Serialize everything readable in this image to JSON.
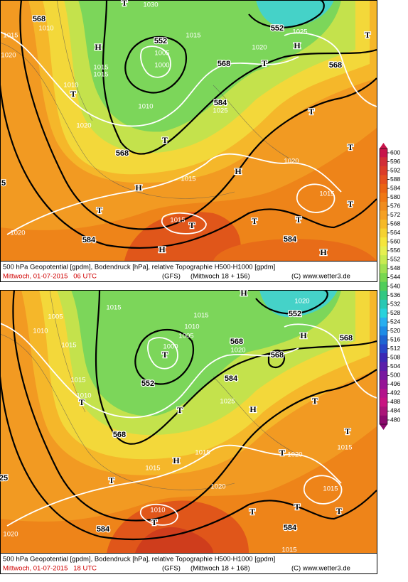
{
  "panels": [
    {
      "labels": [
        "568",
        "1010",
        "1015",
        "1020",
        "T",
        "1030",
        "H",
        "552",
        "1005",
        "1000",
        "1015",
        "1015",
        "1015",
        "552",
        "1025",
        "H",
        "1020",
        "T",
        "568",
        "568",
        "T",
        "1010",
        "T",
        "1010",
        "584",
        "1025",
        "T",
        "1020",
        "568",
        "T",
        "T",
        "1015",
        "H",
        "1020",
        "H",
        "1015",
        "T",
        "T",
        "1015",
        "T",
        "T",
        "T",
        "1020",
        "584",
        "584",
        "H",
        "H",
        "5"
      ],
      "caption": {
        "line1": "500 hPa Geopotential [gpdm], Bodendruck [hPa], relative Topographie H500-H1000 [gpdm]",
        "time": "Mittwoch, 01-07-2015   06 UTC",
        "model": "(GFS)",
        "run": "(Mittwoch 18 + 156)",
        "copyright": "(C) www.wetter3.de"
      }
    },
    {
      "labels": [
        "1015",
        "1005",
        "1010",
        "1015",
        "H",
        "1020",
        "552",
        "1015",
        "1010",
        "1005",
        "1000",
        "T",
        "552",
        "568",
        "1020",
        "568",
        "H",
        "568",
        "1015",
        "1010",
        "T",
        "584",
        "1025",
        "H",
        "T",
        "T",
        "568",
        "T",
        "1015",
        "1015",
        "T",
        "1020",
        "H",
        "1015",
        "T",
        "1020",
        "1015",
        "T",
        "T",
        "T",
        "1010",
        "T",
        "584",
        "584",
        "1020",
        "25",
        "1015"
      ],
      "caption": {
        "line1": "500 hPa Geopotential [gpdm], Bodendruck [hPa], relative Topographie H500-H1000 [gpdm]",
        "time": "Mittwoch, 01-07-2015   18 UTC",
        "model": "(GFS)",
        "run": "(Mittwoch 18 + 168)",
        "copyright": "(C) www.wetter3.de"
      }
    }
  ],
  "colorbar": {
    "ticks": [
      600,
      596,
      592,
      588,
      584,
      580,
      576,
      572,
      568,
      564,
      560,
      556,
      552,
      548,
      544,
      540,
      536,
      532,
      528,
      524,
      520,
      516,
      512,
      508,
      504,
      500,
      496,
      492,
      488,
      484,
      480
    ],
    "colors": [
      "#c8144b",
      "#d22d37",
      "#dc3c28",
      "#e6501e",
      "#eb6414",
      "#f07814",
      "#f08c1e",
      "#f5a023",
      "#f5b928",
      "#f5d232",
      "#f5e63c",
      "#e6f050",
      "#c8eb50",
      "#a0e150",
      "#78d750",
      "#50cd5a",
      "#32c882",
      "#28c8b4",
      "#28d2dc",
      "#28aff0",
      "#1e8ce6",
      "#1e64d2",
      "#2846c8",
      "#3c28b4",
      "#5a1eaa",
      "#7819a0",
      "#961496",
      "#b4148c",
      "#c81482",
      "#aa1478",
      "#8c0a6e"
    ]
  }
}
